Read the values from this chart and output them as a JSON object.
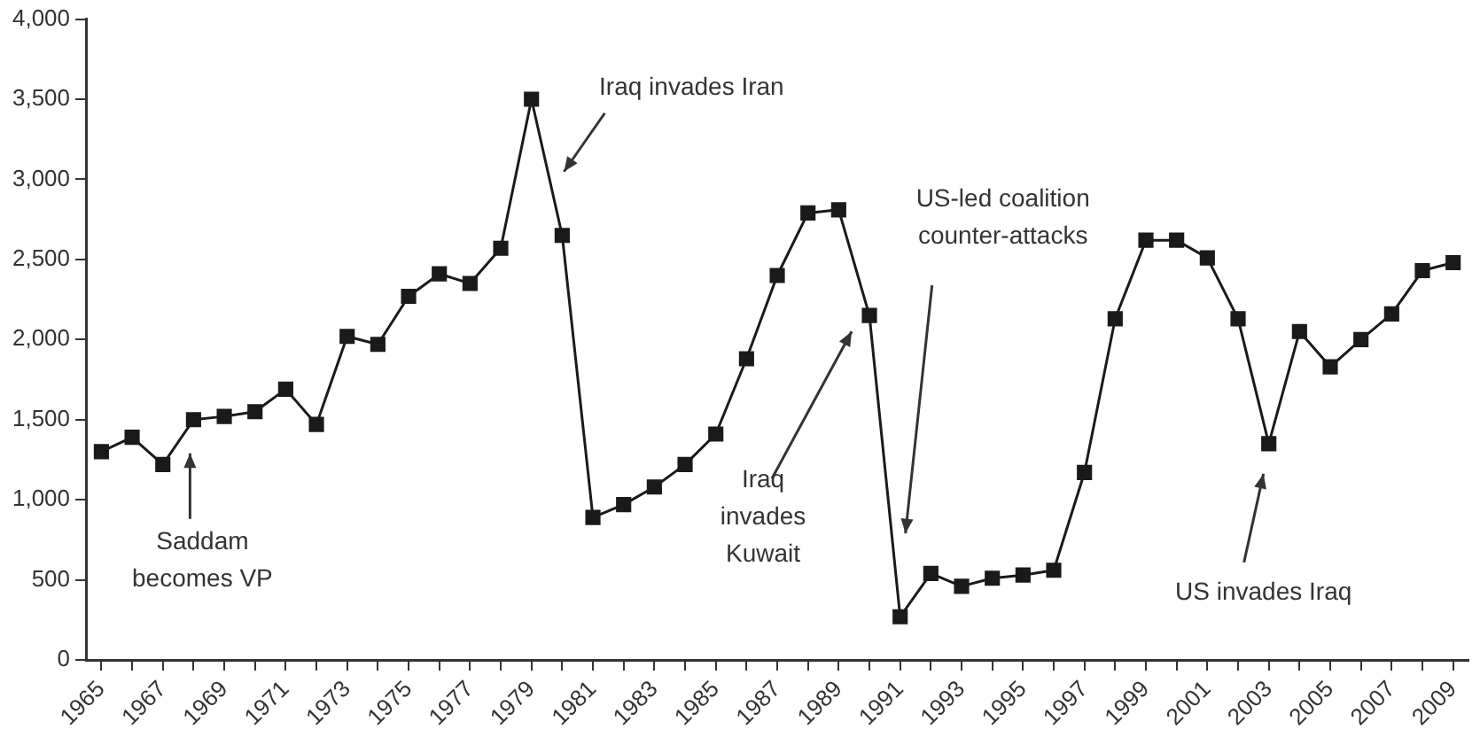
{
  "chart_data": {
    "type": "line",
    "categories": [
      "1965",
      null,
      "1967",
      null,
      "1969",
      null,
      "1971",
      null,
      "1973",
      null,
      "1975",
      null,
      "1977",
      null,
      "1979",
      null,
      "1981",
      null,
      "1983",
      null,
      "1985",
      null,
      "1987",
      null,
      "1989",
      null,
      "1991",
      null,
      "1993",
      null,
      "1995",
      null,
      "1997",
      null,
      "1999",
      null,
      "2001",
      null,
      "2003",
      null,
      "2005",
      null,
      "2007",
      null,
      "2009"
    ],
    "series": [
      {
        "color": "#1a1a1a",
        "values": [
          1300,
          1390,
          1220,
          1500,
          1520,
          1550,
          1690,
          1470,
          2020,
          1970,
          2270,
          2410,
          2350,
          2570,
          3500,
          2650,
          890,
          970,
          1080,
          1220,
          1410,
          1880,
          2400,
          2790,
          2810,
          2150,
          270,
          540,
          460,
          510,
          530,
          560,
          1170,
          2130,
          2620,
          2620,
          2510,
          2130,
          1350,
          2050,
          1830,
          2000,
          2160,
          2430,
          2480
        ]
      }
    ],
    "ylim": [
      0,
      4000
    ],
    "yticks": [
      0,
      500,
      {
        "value": 1000,
        "label": "1,000"
      },
      {
        "value": 1500,
        "label": "1,500"
      },
      {
        "value": 2000,
        "label": "2,000"
      },
      {
        "value": 2500,
        "label": "2,500"
      },
      {
        "value": 3000,
        "label": "3,000"
      },
      {
        "value": 3500,
        "label": "3,500"
      },
      {
        "value": 4000,
        "label": "4,000"
      }
    ],
    "grid": false,
    "legend": false,
    "marker": "square",
    "line_style": "solid",
    "annotations": [
      "Saddam\nbecomes VP",
      "Iraq invades Iran",
      "Iraq\ninvades\nKuwait",
      "US-led coalition\ncounter-attacks",
      "US invades Iraq"
    ]
  }
}
